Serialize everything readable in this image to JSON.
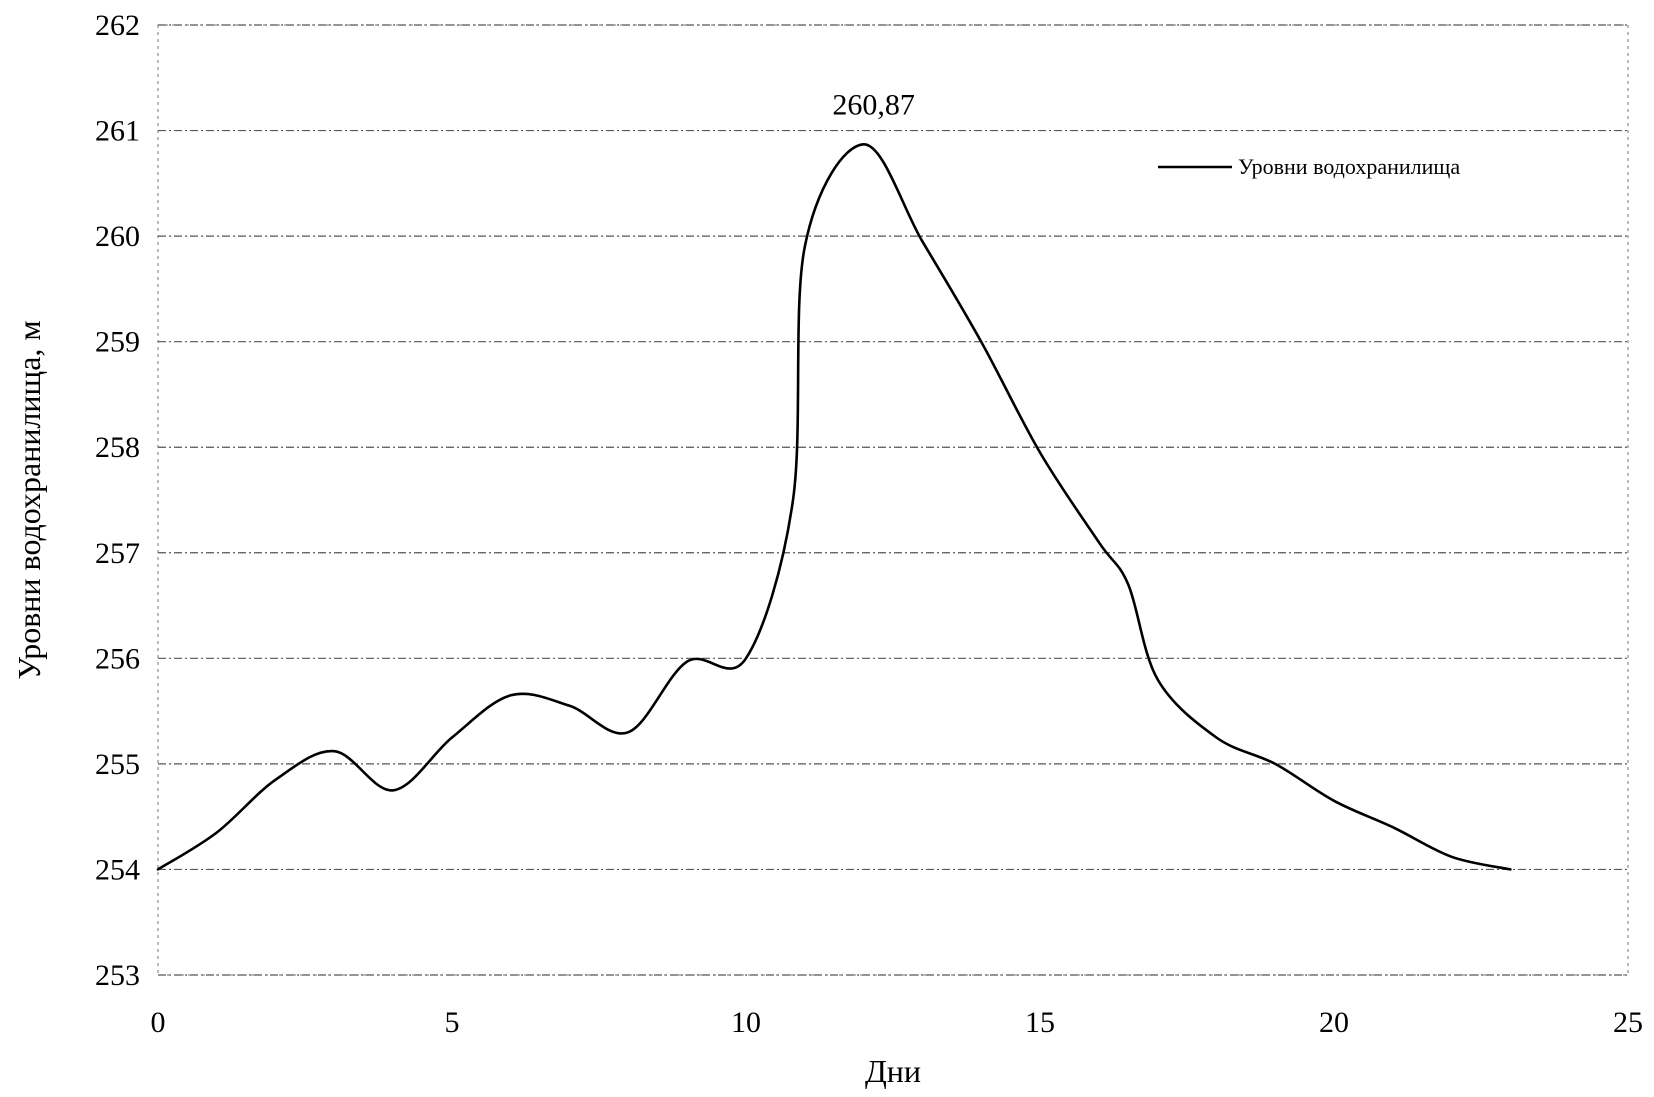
{
  "chart_data": {
    "type": "line",
    "xlabel": "Дни",
    "ylabel": "Уровни водохранилища, м",
    "xlim": [
      0,
      25
    ],
    "ylim": [
      253,
      262
    ],
    "x_ticks": [
      "0",
      "5",
      "10",
      "15",
      "20",
      "25"
    ],
    "y_ticks": [
      "253",
      "254",
      "255",
      "256",
      "257",
      "258",
      "259",
      "260",
      "261",
      "262"
    ],
    "grid": true,
    "legend_position": "top-right",
    "series": [
      {
        "name": "Уровни водохранилища",
        "color": "#000000",
        "x": [
          0,
          1,
          2,
          3,
          4,
          5,
          6,
          7,
          8,
          9,
          10,
          10.8,
          11,
          12,
          13,
          14,
          15,
          16,
          16.5,
          17,
          18,
          19,
          20,
          21,
          22,
          23
        ],
        "y": [
          254.0,
          254.35,
          254.85,
          255.12,
          254.75,
          255.25,
          255.65,
          255.55,
          255.3,
          255.97,
          256.0,
          257.5,
          259.9,
          260.87,
          259.95,
          259.0,
          257.95,
          257.1,
          256.7,
          255.8,
          255.25,
          255.0,
          254.65,
          254.4,
          254.12,
          254.0
        ]
      }
    ],
    "annotations": [
      {
        "text": "260,87",
        "x": 12,
        "y": 260.87
      }
    ]
  }
}
